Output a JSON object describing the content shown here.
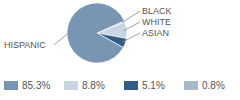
{
  "chart_data": {
    "type": "pie",
    "categories": [
      "HISPANIC",
      "WHITE",
      "ASIAN",
      "BLACK"
    ],
    "values": [
      85.3,
      8.8,
      5.1,
      0.8
    ],
    "value_labels": [
      "85.3%",
      "8.8%",
      "5.1%",
      "0.8%"
    ],
    "colors": [
      "#7895b4",
      "#c8d6e3",
      "#2f5d84",
      "#a6b8c9"
    ],
    "legend": "bottom"
  }
}
